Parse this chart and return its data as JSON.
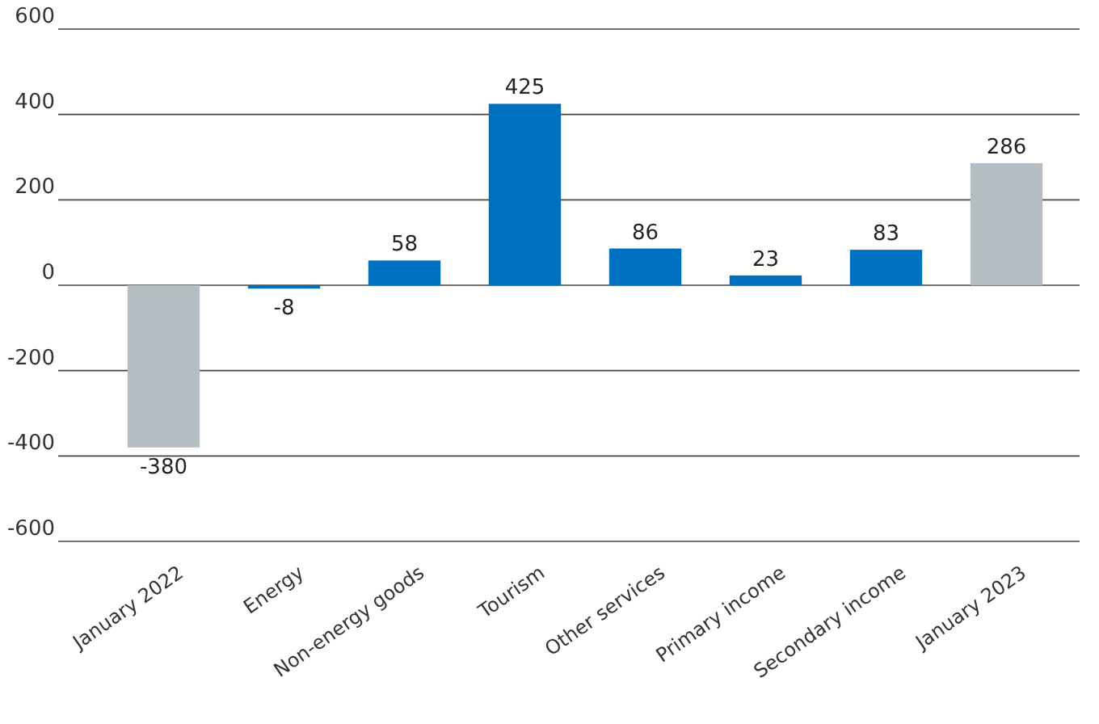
{
  "chart_data": {
    "type": "bar",
    "categories": [
      "January 2022",
      "Energy",
      "Non-energy goods",
      "Tourism",
      "Other services",
      "Primary income",
      "Secondary income",
      "January 2023"
    ],
    "values": [
      -380,
      -8,
      58,
      425,
      86,
      23,
      83,
      286
    ],
    "colors": [
      "#b3bdc2",
      "#0070c0",
      "#0070c0",
      "#0070c0",
      "#0070c0",
      "#0070c0",
      "#0070c0",
      "#b3bdc2"
    ],
    "ylim": [
      -600,
      600
    ],
    "yticks": [
      -600,
      -400,
      -200,
      0,
      200,
      400,
      600
    ],
    "grid": "y",
    "data_labels": true
  }
}
